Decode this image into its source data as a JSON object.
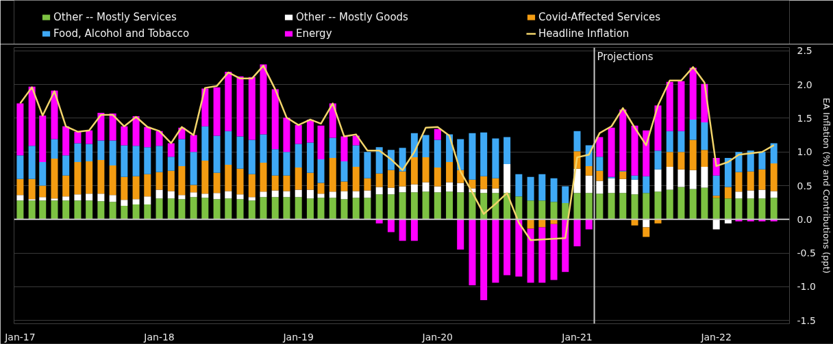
{
  "chart_data": {
    "type": "bar",
    "stacked": true,
    "ylabel": "EA Inflation (%) and Contributions (ppt)",
    "x": [
      "2017-01",
      "2017-02",
      "2017-03",
      "2017-04",
      "2017-05",
      "2017-06",
      "2017-07",
      "2017-08",
      "2017-09",
      "2017-10",
      "2017-11",
      "2017-12",
      "2018-01",
      "2018-02",
      "2018-03",
      "2018-04",
      "2018-05",
      "2018-06",
      "2018-07",
      "2018-08",
      "2018-09",
      "2018-10",
      "2018-11",
      "2018-12",
      "2019-01",
      "2019-02",
      "2019-03",
      "2019-04",
      "2019-05",
      "2019-06",
      "2019-07",
      "2019-08",
      "2019-09",
      "2019-10",
      "2019-11",
      "2019-12",
      "2020-01",
      "2020-02",
      "2020-03",
      "2020-04",
      "2020-05",
      "2020-06",
      "2020-07",
      "2020-08",
      "2020-09",
      "2020-10",
      "2020-11",
      "2020-12",
      "2021-01",
      "2021-02",
      "2021-03",
      "2021-04",
      "2021-05",
      "2021-06",
      "2021-07",
      "2021-08",
      "2021-09",
      "2021-10",
      "2021-11",
      "2021-12",
      "2022-01",
      "2022-02",
      "2022-03",
      "2022-04",
      "2022-05",
      "2022-06"
    ],
    "series": [
      {
        "name": "Other -- Mostly Services",
        "color": "#7dc242",
        "values": [
          0.28,
          0.28,
          0.28,
          0.28,
          0.28,
          0.28,
          0.28,
          0.27,
          0.26,
          0.2,
          0.22,
          0.22,
          0.31,
          0.31,
          0.3,
          0.33,
          0.32,
          0.3,
          0.31,
          0.3,
          0.28,
          0.33,
          0.33,
          0.33,
          0.33,
          0.31,
          0.32,
          0.32,
          0.3,
          0.32,
          0.32,
          0.37,
          0.37,
          0.4,
          0.4,
          0.41,
          0.4,
          0.41,
          0.4,
          0.4,
          0.39,
          0.39,
          0.39,
          0.34,
          0.28,
          0.28,
          0.26,
          0.24,
          0.39,
          0.39,
          0.38,
          0.39,
          0.39,
          0.37,
          0.39,
          0.41,
          0.44,
          0.48,
          0.45,
          0.47,
          0.32,
          0.31,
          0.31,
          0.31,
          0.31,
          0.32
        ]
      },
      {
        "name": "Other -- Mostly Goods",
        "color": "#ffffff",
        "values": [
          0.08,
          0.02,
          0.05,
          0.03,
          0.06,
          0.09,
          0.1,
          0.11,
          0.1,
          0.09,
          0.08,
          0.12,
          0.13,
          0.11,
          0.06,
          0.07,
          0.06,
          0.09,
          0.11,
          0.07,
          0.05,
          0.08,
          0.1,
          0.09,
          0.11,
          0.13,
          0.06,
          0.09,
          0.12,
          0.1,
          0.11,
          0.11,
          0.1,
          0.09,
          0.12,
          0.14,
          0.09,
          0.14,
          0.14,
          0.06,
          0.06,
          0.07,
          0.43,
          0,
          0,
          0,
          0,
          0,
          0.36,
          0.26,
          0.19,
          0.22,
          0.21,
          0.22,
          -0.12,
          0.33,
          0.34,
          0.26,
          0.28,
          0.31,
          -0.15,
          -0.06,
          0.1,
          0.12,
          0.13,
          0.1
        ]
      },
      {
        "name": "Covid-Affected Services",
        "color": "#f39c12",
        "values": [
          0.24,
          0.3,
          0.17,
          0.59,
          0.31,
          0.48,
          0.48,
          0.5,
          0.44,
          0.34,
          0.34,
          0.33,
          0.26,
          0.3,
          0.43,
          0.11,
          0.49,
          0.3,
          0.39,
          0.38,
          0.34,
          0.43,
          0.22,
          0.23,
          0.33,
          0.25,
          0.16,
          0.5,
          0.14,
          0.36,
          0.18,
          0.2,
          0.26,
          0.22,
          0.4,
          0.37,
          0.28,
          0.3,
          0.19,
          0.13,
          0.19,
          0.15,
          0,
          0,
          -0.14,
          -0.12,
          -0.07,
          0,
          0.26,
          0.14,
          0.15,
          0,
          0.11,
          -0.09,
          -0.14,
          -0.06,
          0.22,
          0.26,
          0.45,
          0.25,
          0.03,
          0.17,
          0.29,
          0.28,
          0.3,
          0.41
        ]
      },
      {
        "name": "Food, Alcohol and Tobacco",
        "color": "#3fa9f5",
        "values": [
          0.35,
          0.49,
          0.35,
          0.29,
          0.3,
          0.28,
          0.26,
          0.29,
          0.37,
          0.47,
          0.45,
          0.4,
          0.39,
          0.21,
          0.4,
          0.49,
          0.51,
          0.55,
          0.5,
          0.48,
          0.51,
          0.42,
          0.39,
          0.35,
          0.35,
          0.45,
          0.35,
          0.3,
          0.3,
          0.32,
          0.39,
          0.39,
          0.3,
          0.35,
          0.36,
          0.33,
          0.41,
          0.41,
          0.46,
          0.69,
          0.65,
          0.59,
          0.4,
          0.33,
          0.35,
          0.39,
          0.35,
          0.25,
          0.3,
          0.31,
          0.21,
          0.02,
          0.01,
          0.06,
          0.25,
          0.28,
          0.31,
          0.31,
          0.3,
          0.41,
          0.3,
          0.43,
          0.3,
          0.31,
          0.26,
          0.3
        ]
      },
      {
        "name": "Energy",
        "color": "#ff00ff",
        "values": [
          0.77,
          0.88,
          0.69,
          0.72,
          0.43,
          0.17,
          0.2,
          0.41,
          0.4,
          0.28,
          0.44,
          0.3,
          0.22,
          0.2,
          0.17,
          0.25,
          0.56,
          0.72,
          0.88,
          0.89,
          0.93,
          1.04,
          0.89,
          0.51,
          0.28,
          0.34,
          0.5,
          0.51,
          0.37,
          0.14,
          0,
          -0.06,
          -0.19,
          -0.32,
          -0.32,
          0,
          0.16,
          0,
          -0.45,
          -0.98,
          -1.2,
          -0.94,
          -0.83,
          -0.85,
          -0.8,
          -0.82,
          -0.83,
          -0.78,
          -0.4,
          -0.15,
          0.29,
          0.73,
          0.91,
          0.74,
          0.68,
          0.67,
          0.73,
          0.74,
          0.77,
          0.57,
          0.26,
          0,
          -0.03,
          -0.03,
          -0.03,
          -0.03
        ]
      },
      {
        "name": "Headline Inflation",
        "type": "line",
        "color": "#f2d46b",
        "values": [
          1.72,
          1.96,
          1.54,
          1.9,
          1.38,
          1.3,
          1.32,
          1.55,
          1.55,
          1.38,
          1.52,
          1.37,
          1.31,
          1.13,
          1.37,
          1.25,
          1.95,
          1.98,
          2.18,
          2.09,
          2.09,
          2.28,
          1.93,
          1.51,
          1.4,
          1.48,
          1.42,
          1.72,
          1.23,
          1.26,
          1.02,
          1.02,
          0.89,
          0.73,
          1.0,
          1.36,
          1.37,
          1.24,
          0.71,
          0.4,
          0.08,
          0.23,
          0.39,
          -0.05,
          -0.31,
          -0.3,
          -0.29,
          -0.28,
          0.92,
          0.96,
          1.28,
          1.38,
          1.65,
          1.36,
          1.1,
          1.69,
          2.06,
          2.06,
          2.26,
          2.03,
          0.79,
          0.85,
          0.96,
          0.98,
          1.0,
          1.1
        ]
      }
    ],
    "xlim": [
      "2016-12-16",
      "2022-07-12"
    ],
    "xticks": [
      {
        "value": "2017-01",
        "label": "Jan-17"
      },
      {
        "value": "2018-01",
        "label": "Jan-18"
      },
      {
        "value": "2019-01",
        "label": "Jan-19"
      },
      {
        "value": "2020-01",
        "label": "Jan-20"
      },
      {
        "value": "2021-01",
        "label": "Jan-21"
      },
      {
        "value": "2022-01",
        "label": "Jan-22"
      }
    ],
    "ylim": [
      -1.55,
      2.55
    ],
    "yticks": [
      2.5,
      {
        "value": 2,
        "label": "2.0"
      },
      1.5,
      {
        "value": 1,
        "label": "1.0"
      },
      0.5,
      {
        "value": 0,
        "label": "0.0"
      },
      -0.5,
      {
        "value": -1,
        "label": "-1.0"
      },
      -1.5
    ],
    "ref_lines": [
      {
        "axis": "y",
        "value": 0,
        "color": "#c8c8c8"
      },
      {
        "axis": "x",
        "value": "2021-02-15",
        "label": "Projections",
        "color": "#c8c8c8"
      }
    ],
    "grid": "y",
    "legend": "top"
  }
}
